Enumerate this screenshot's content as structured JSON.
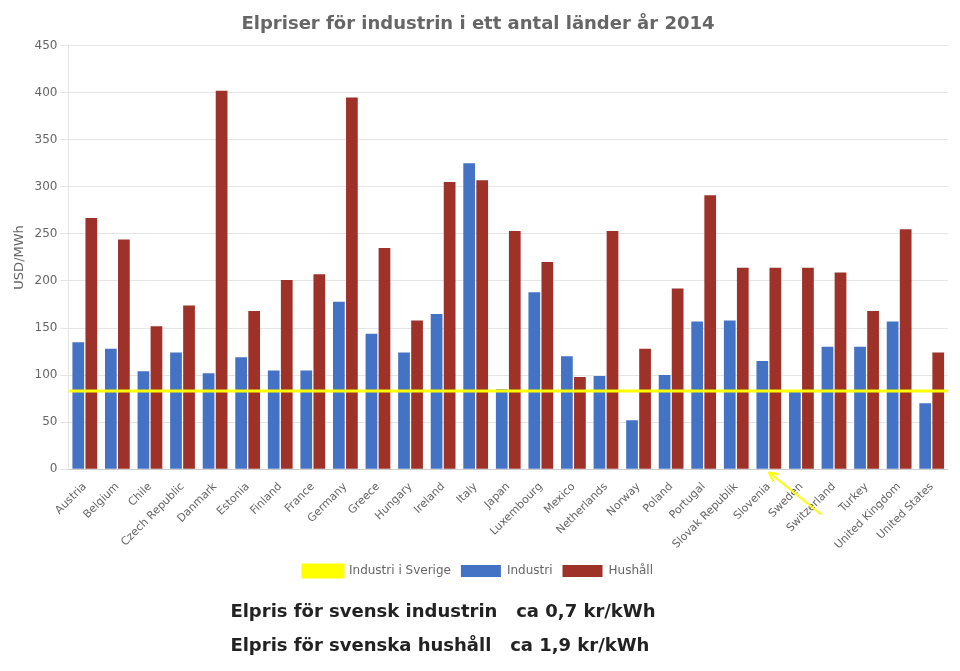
{
  "chart_data": {
    "type": "bar",
    "title": "Elpriser för industrin i ett antal länder år 2014",
    "ylabel": "USD/MWh",
    "categories": [
      "Austria",
      "Belgium",
      "Chile",
      "Czech Republic",
      "Danmark",
      "Estonia",
      "Finland",
      "France",
      "Germany",
      "Greece",
      "Hungary",
      "Ireland",
      "Italy",
      "Japan",
      "Luxembourg",
      "Mexico",
      "Netherlands",
      "Norway",
      "Poland",
      "Portugal",
      "Slovak Republik",
      "Slovenia",
      "Sweden",
      "Switzerland",
      "Turkey",
      "United Kingdom",
      "United States"
    ],
    "series": [
      {
        "name": "Industri",
        "color": "#4472C4",
        "values": [
          135,
          128,
          104,
          124,
          102,
          119,
          105,
          105,
          178,
          144,
          124,
          165,
          325,
          85,
          188,
          120,
          99,
          52,
          100,
          157,
          158,
          115,
          82,
          130,
          130,
          157,
          70
        ]
      },
      {
        "name": "Hushåll",
        "color": "#9E3128",
        "values": [
          267,
          244,
          152,
          174,
          402,
          168,
          201,
          207,
          395,
          235,
          158,
          305,
          307,
          253,
          220,
          98,
          253,
          128,
          192,
          291,
          214,
          214,
          214,
          209,
          168,
          255,
          124
        ]
      }
    ],
    "hlines": [
      {
        "name": "Industri i Sverige",
        "value": 83,
        "color": "#FFFF00"
      }
    ],
    "annotations": [
      {
        "text": "Elpris för svensk industrin   ca 0,7 kr/kWh"
      },
      {
        "text": "Elpris för svenska hushåll   ca 1,9 kr/kWh"
      },
      {
        "arrow_to": "Slovenia",
        "color": "#FFFF00"
      }
    ],
    "ylim": [
      0,
      450
    ],
    "yticks": [
      0,
      50,
      100,
      150,
      200,
      250,
      300,
      350,
      400,
      450
    ],
    "grid": true,
    "legend": "bottom"
  }
}
